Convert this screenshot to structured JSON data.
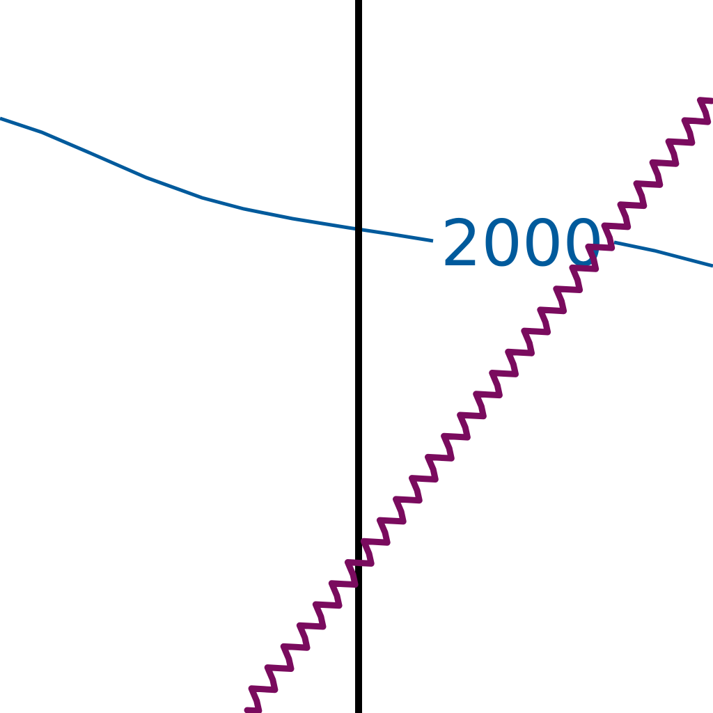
{
  "map": {
    "contour": {
      "label": "2000",
      "color": "#005a9c"
    },
    "meridian": {
      "color": "#000000"
    },
    "wavy_line": {
      "color": "#7a0b5e"
    },
    "background": "#ffffff"
  }
}
